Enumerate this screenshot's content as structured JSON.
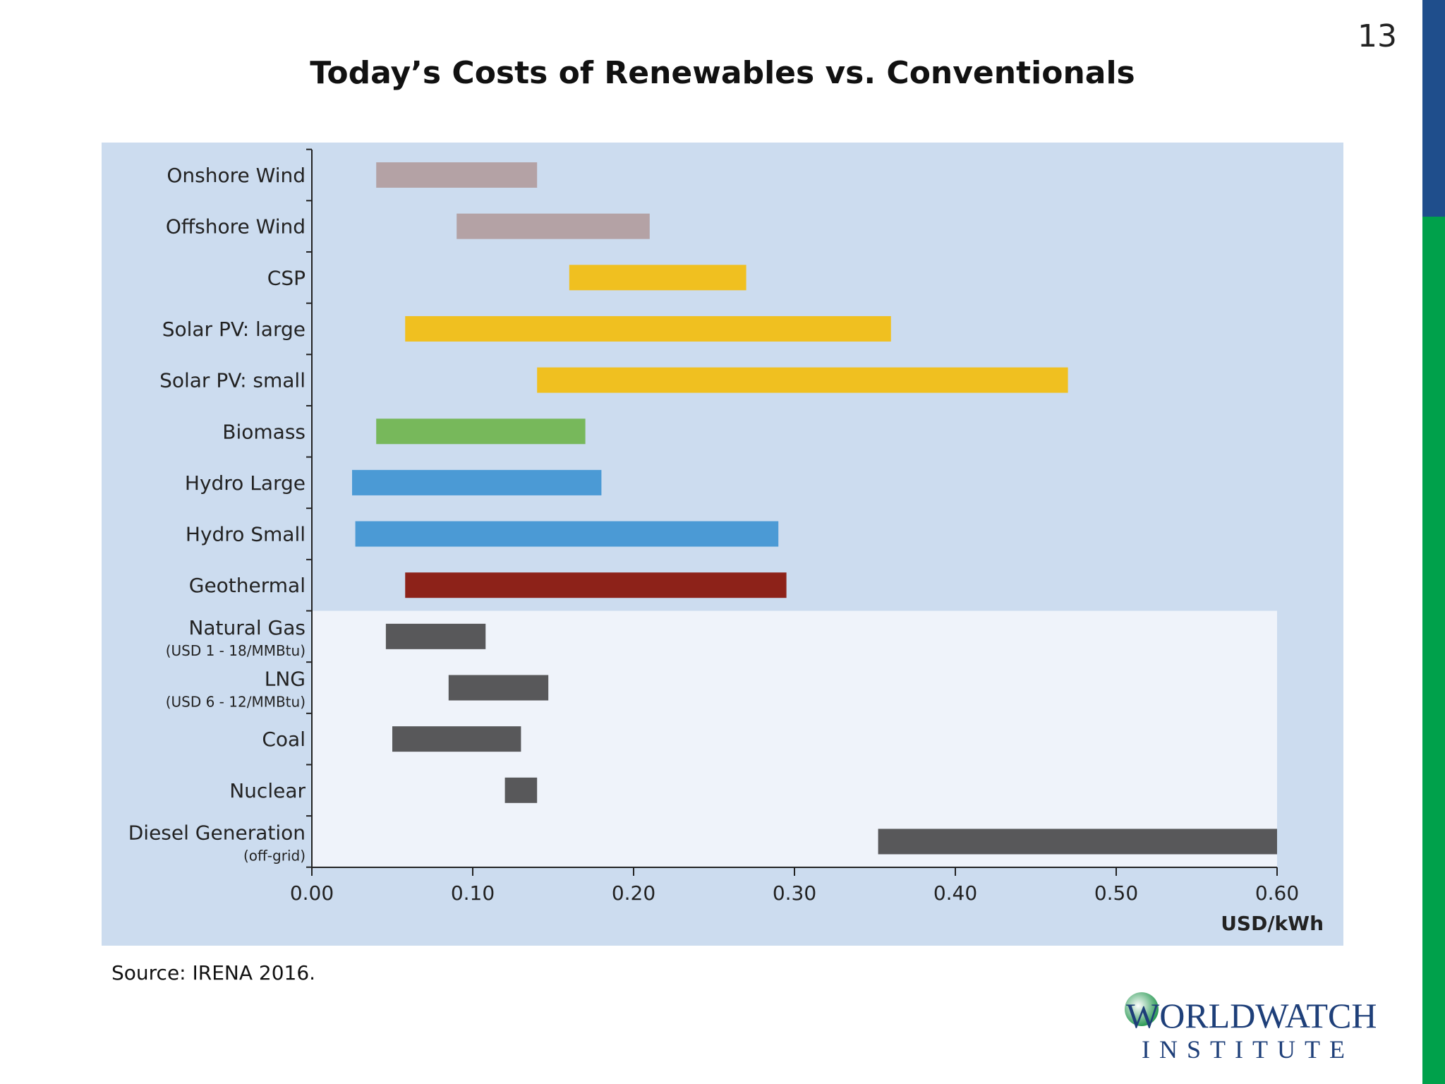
{
  "slide": {
    "page_number": "13",
    "title": "Today’s Costs of Renewables vs. Conventionals",
    "source": "Source: IRENA 2016.",
    "accent_colors": {
      "bar_top": "#1f4e8c",
      "bar_bottom": "#00a14b"
    }
  },
  "logo": {
    "word": "WORLDWATCH",
    "sub": "INSTITUTE"
  },
  "chart_data": {
    "type": "bar",
    "orientation": "horizontal-range",
    "title": "",
    "xlabel": "USD/kWh",
    "ylabel": "",
    "xlim": [
      0,
      0.6
    ],
    "x_ticks": [
      "0.00",
      "0.10",
      "0.20",
      "0.30",
      "0.40",
      "0.50",
      "0.60"
    ],
    "grid": false,
    "background_colors": {
      "renewables": "#ccdcef",
      "conventionals": "#eff3fa"
    },
    "categories": [
      {
        "label": "Onshore Wind",
        "low": 0.04,
        "high": 0.14,
        "color": "#b4a2a5",
        "group": "renewables"
      },
      {
        "label": "Offshore Wind",
        "low": 0.09,
        "high": 0.21,
        "color": "#b4a2a5",
        "group": "renewables"
      },
      {
        "label": "CSP",
        "low": 0.16,
        "high": 0.27,
        "color": "#f0c020",
        "group": "renewables"
      },
      {
        "label": "Solar PV: large",
        "low": 0.058,
        "high": 0.36,
        "color": "#f0c020",
        "group": "renewables"
      },
      {
        "label": "Solar PV: small",
        "low": 0.14,
        "high": 0.47,
        "color": "#f0c020",
        "group": "renewables"
      },
      {
        "label": "Biomass",
        "low": 0.04,
        "high": 0.17,
        "color": "#77b85b",
        "group": "renewables"
      },
      {
        "label": "Hydro Large",
        "low": 0.025,
        "high": 0.18,
        "color": "#4b9ad5",
        "group": "renewables"
      },
      {
        "label": "Hydro Small",
        "low": 0.027,
        "high": 0.29,
        "color": "#4b9ad5",
        "group": "renewables"
      },
      {
        "label": "Geothermal",
        "low": 0.058,
        "high": 0.295,
        "color": "#8d2219",
        "group": "renewables"
      },
      {
        "label": "Natural Gas",
        "sublabel": "(USD 1 - 18/MMBtu)",
        "low": 0.046,
        "high": 0.108,
        "color": "#58585a",
        "group": "conventionals"
      },
      {
        "label": "LNG",
        "sublabel": "(USD 6 - 12/MMBtu)",
        "low": 0.085,
        "high": 0.147,
        "color": "#58585a",
        "group": "conventionals"
      },
      {
        "label": "Coal",
        "low": 0.05,
        "high": 0.13,
        "color": "#58585a",
        "group": "conventionals"
      },
      {
        "label": "Nuclear",
        "low": 0.12,
        "high": 0.14,
        "color": "#58585a",
        "group": "conventionals"
      },
      {
        "label": "Diesel Generation",
        "sublabel": "(off-grid)",
        "low": 0.352,
        "high": 0.6,
        "color": "#58585a",
        "group": "conventionals"
      }
    ]
  }
}
